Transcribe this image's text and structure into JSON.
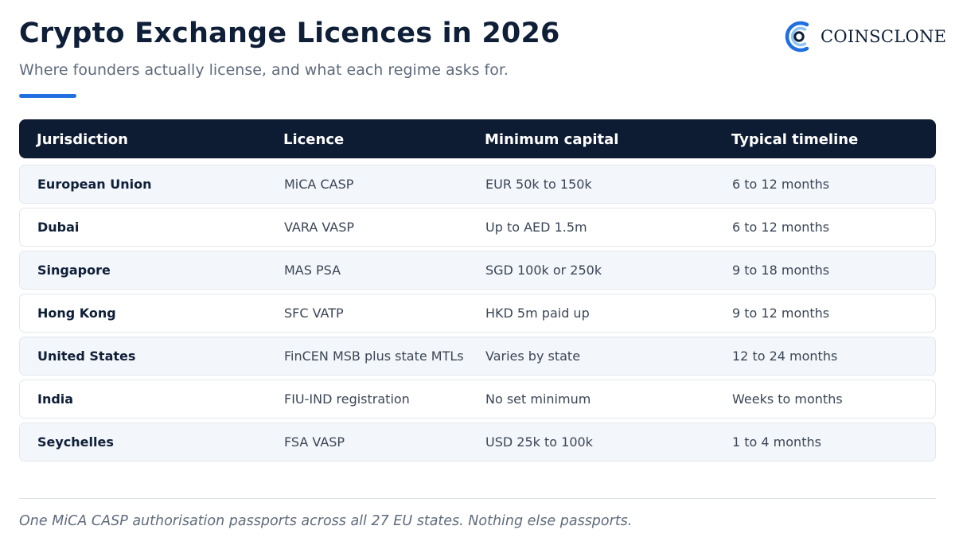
{
  "header": {
    "title": "Crypto Exchange Licences in 2026",
    "subtitle": "Where founders actually license, and what each regime asks for.",
    "accent_color": "#1f6fe0"
  },
  "brand": {
    "name": "COINSCLONE",
    "icon": "coinsclone-logo-icon",
    "colors": {
      "primary": "#1f6fe0",
      "secondary": "#8ec3f4"
    }
  },
  "table": {
    "columns": [
      "Jurisdiction",
      "Licence",
      "Minimum capital",
      "Typical timeline"
    ],
    "rows": [
      {
        "jurisdiction": "European Union",
        "licence": "MiCA CASP",
        "capital": "EUR 50k to 150k",
        "timeline": "6 to 12 months"
      },
      {
        "jurisdiction": "Dubai",
        "licence": "VARA VASP",
        "capital": "Up to AED 1.5m",
        "timeline": "6 to 12 months"
      },
      {
        "jurisdiction": "Singapore",
        "licence": "MAS PSA",
        "capital": "SGD 100k or 250k",
        "timeline": "9 to 18 months"
      },
      {
        "jurisdiction": "Hong Kong",
        "licence": "SFC VATP",
        "capital": "HKD 5m paid up",
        "timeline": "9 to 12 months"
      },
      {
        "jurisdiction": "United States",
        "licence": "FinCEN MSB plus state MTLs",
        "capital": "Varies by state",
        "timeline": "12 to 24 months"
      },
      {
        "jurisdiction": "India",
        "licence": "FIU-IND registration",
        "capital": "No set minimum",
        "timeline": "Weeks to months"
      },
      {
        "jurisdiction": "Seychelles",
        "licence": "FSA VASP",
        "capital": "USD 25k to 100k",
        "timeline": "1 to 4 months"
      }
    ],
    "header_color": "#0d1b33",
    "alt_row_color": "#f3f6fa"
  },
  "footer": {
    "note": "One MiCA CASP authorisation passports across all 27 EU states. Nothing else passports."
  }
}
